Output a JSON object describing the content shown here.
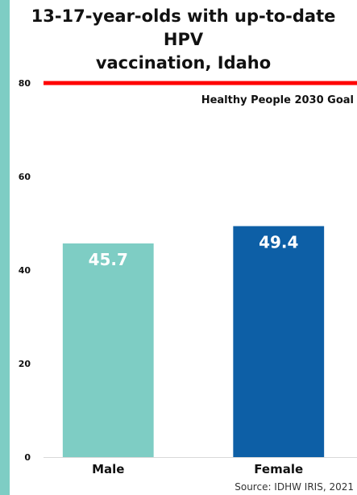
{
  "chart_data": {
    "type": "bar",
    "title": "13-17-year-olds with up-to-date HPV vaccination, Idaho",
    "title_lines": [
      "13-17-year-olds with up-to-date HPV",
      "vaccination, Idaho"
    ],
    "categories": [
      "Male",
      "Female"
    ],
    "values": [
      45.7,
      49.4
    ],
    "value_labels": [
      "45.7",
      "49.4"
    ],
    "colors": [
      "#7ecdc4",
      "#0d5fa6"
    ],
    "xlabel": "",
    "ylabel": "",
    "ylim": [
      0,
      80
    ],
    "yticks": [
      0,
      20,
      40,
      60,
      80
    ],
    "ytick_labels": [
      "0",
      "20",
      "40",
      "60",
      "80"
    ],
    "grid": false,
    "goal_line": {
      "value": 80,
      "label": "Healthy People 2030 Goal",
      "color": "#ff0000"
    },
    "source": "Source: IDHW IRIS, 2021"
  },
  "page": {
    "background_color": "#7ecdc4"
  }
}
